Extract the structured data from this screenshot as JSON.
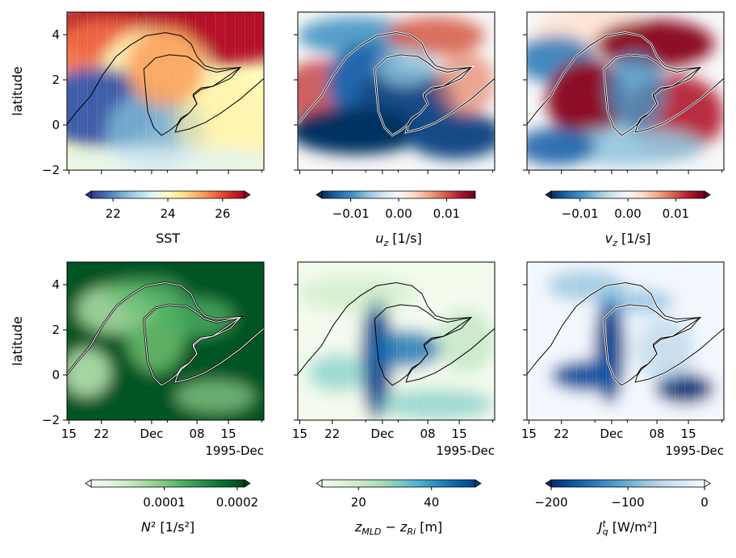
{
  "chart_data": [
    {
      "type": "heatmap",
      "panel": "top-left",
      "colormap": "RdYlBu_r",
      "ylabel": "latitude",
      "ylim": [
        -2,
        5
      ],
      "yticks": [
        "−2",
        "0",
        "2",
        "4"
      ],
      "xticks": [],
      "colorbar": {
        "label": "SST",
        "ticks": [
          "22",
          "24",
          "26"
        ],
        "tick_values": [
          22,
          24,
          26
        ],
        "range": [
          21.2,
          26.8
        ]
      }
    },
    {
      "type": "heatmap",
      "panel": "top-middle",
      "colormap": "RdBu_r",
      "ylim": [
        -2,
        5
      ],
      "xticks": [],
      "colorbar": {
        "label": "u_z [1/s]",
        "ticks": [
          "−0.01",
          "0.00",
          "0.01"
        ],
        "tick_values": [
          -0.01,
          0,
          0.01
        ],
        "range": [
          -0.016,
          0.016
        ]
      }
    },
    {
      "type": "heatmap",
      "panel": "top-right",
      "colormap": "RdBu_r",
      "ylim": [
        -2,
        5
      ],
      "xticks": [],
      "colorbar": {
        "label": "v_z [1/s]",
        "ticks": [
          "−0.01",
          "0.00",
          "0.01"
        ],
        "tick_values": [
          -0.01,
          0,
          0.01
        ],
        "range": [
          -0.016,
          0.016
        ]
      }
    },
    {
      "type": "heatmap",
      "panel": "bottom-left",
      "colormap": "Greens",
      "ylabel": "latitude",
      "ylim": [
        -2,
        5
      ],
      "yticks": [
        "−2",
        "0",
        "2",
        "4"
      ],
      "xticks": [
        "15",
        "22",
        "Dec",
        "08",
        "15"
      ],
      "xoffset": "1995-Dec",
      "colorbar": {
        "label": "N² [1/s²]",
        "ticks": [
          "0.0001",
          "0.0002"
        ],
        "tick_values": [
          0.0001,
          0.0002
        ],
        "range": [
          0,
          0.00021
        ]
      }
    },
    {
      "type": "heatmap",
      "panel": "bottom-middle",
      "colormap": "GnBu",
      "ylim": [
        -2,
        5
      ],
      "xticks": [
        "15",
        "22",
        "Dec",
        "08",
        "15"
      ],
      "xoffset": "1995-Dec",
      "colorbar": {
        "label": "z_MLD − z_Ri [m]",
        "ticks": [
          "20",
          "40"
        ],
        "tick_values": [
          20,
          40
        ],
        "range": [
          10,
          52
        ]
      }
    },
    {
      "type": "heatmap",
      "panel": "bottom-right",
      "colormap": "Blues_r",
      "ylim": [
        -2,
        5
      ],
      "xticks": [
        "15",
        "22",
        "Dec",
        "08",
        "15"
      ],
      "xoffset": "1995-Dec",
      "colorbar": {
        "label": "J_q^t [W/m²]",
        "ticks": [
          "−200",
          "−100",
          "0"
        ],
        "tick_values": [
          -200,
          -100,
          0
        ],
        "range": [
          -200,
          0
        ]
      }
    }
  ],
  "ylabel": "latitude"
}
